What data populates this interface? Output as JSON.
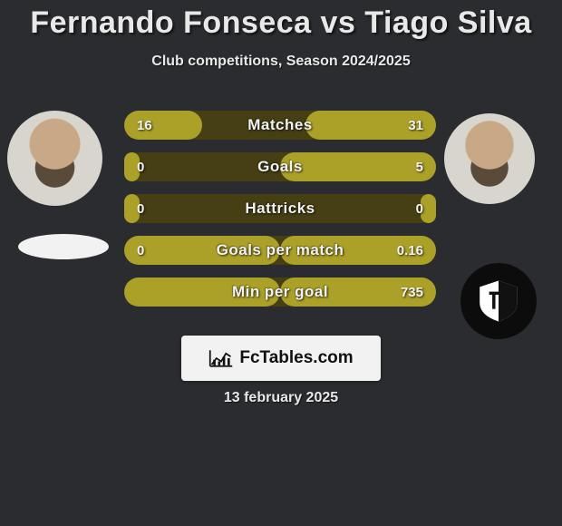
{
  "title": "Fernando Fonseca vs Tiago Silva",
  "subtitle": "Club competitions, Season 2024/2025",
  "date": "13 february 2025",
  "colors": {
    "page_bg": "#2b2c30",
    "text": "#e8e8e8",
    "bar_bg": "#463f14",
    "bar_fill": "#aba028",
    "attribution_bg": "#f2f2f2",
    "attribution_text": "#111111"
  },
  "fonts": {
    "title_size": 34,
    "title_weight": 900,
    "subtitle_size": 16,
    "label_size": 17,
    "value_size": 15
  },
  "attribution": "FcTables.com",
  "stats": [
    {
      "label": "Matches",
      "left_value": "16",
      "right_value": "31",
      "left_fill_pct": 50,
      "right_fill_pct": 84
    },
    {
      "label": "Goals",
      "left_value": "0",
      "right_value": "5",
      "left_fill_pct": 10,
      "right_fill_pct": 100
    },
    {
      "label": "Hattricks",
      "left_value": "0",
      "right_value": "0",
      "left_fill_pct": 10,
      "right_fill_pct": 10
    },
    {
      "label": "Goals per match",
      "left_value": "0",
      "right_value": "0.16",
      "left_fill_pct": 100,
      "right_fill_pct": 100
    },
    {
      "label": "Min per goal",
      "left_value": "",
      "right_value": "735",
      "left_fill_pct": 100,
      "right_fill_pct": 100
    }
  ]
}
